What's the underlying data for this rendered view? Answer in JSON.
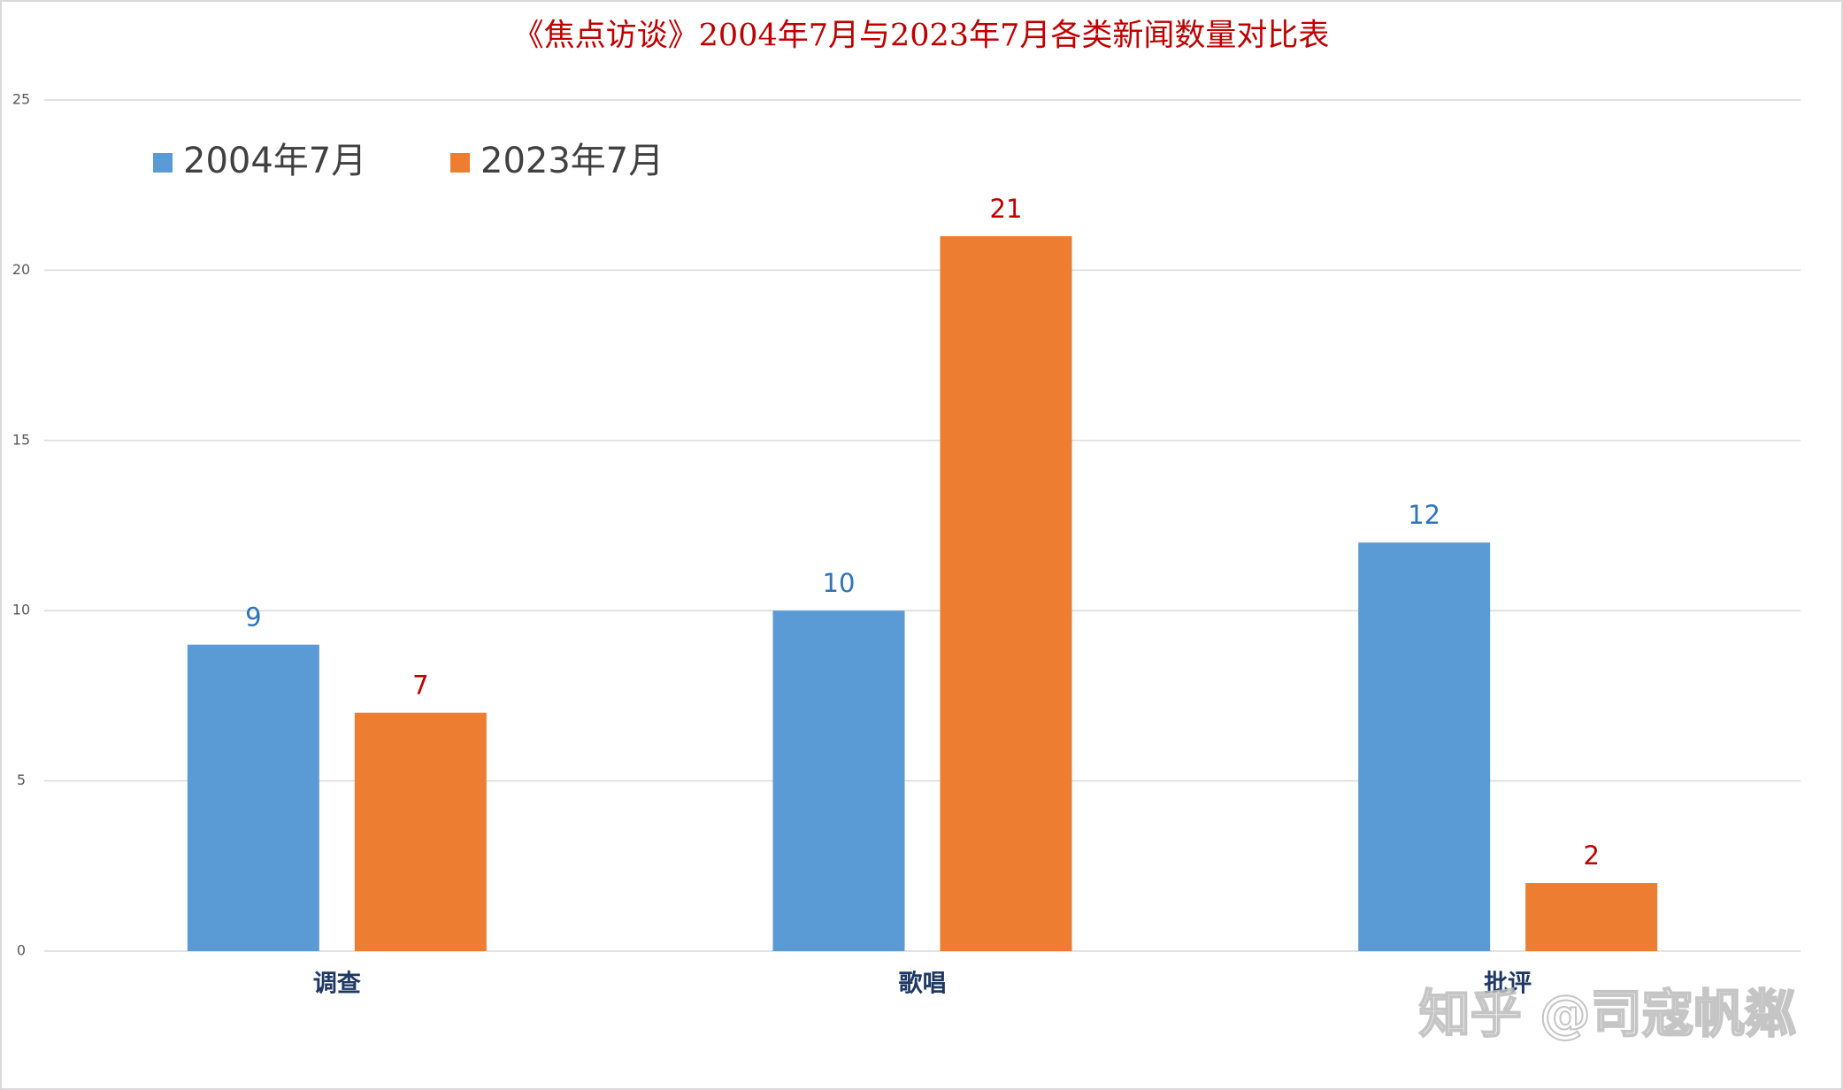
{
  "chart_data": {
    "type": "bar",
    "title": "《焦点访谈》2004年7月与2023年7月各类新闻数量对比表",
    "categories": [
      "调查",
      "歌唱",
      "批评"
    ],
    "series": [
      {
        "name": "2004年7月",
        "color": "#5b9bd5",
        "label_color": "#2e75b6",
        "values": [
          9,
          10,
          12
        ]
      },
      {
        "name": "2023年7月",
        "color": "#ed7d31",
        "label_color": "#c00000",
        "values": [
          7,
          21,
          2
        ]
      }
    ],
    "ylim": [
      0,
      25
    ],
    "yticks": [
      0,
      5,
      10,
      15,
      20,
      25
    ],
    "grid": true,
    "legend": "top-left",
    "watermark": "知乎 @司寇帆粼"
  }
}
